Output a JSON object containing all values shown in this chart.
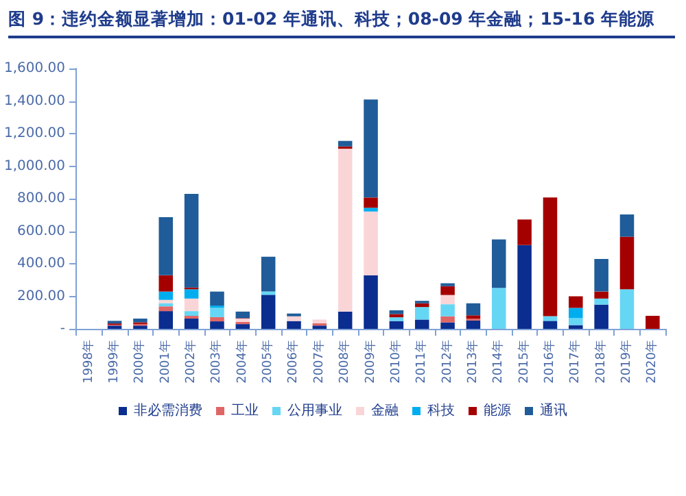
{
  "chart_data": {
    "type": "bar",
    "stacked": true,
    "title": "图 9：违约金额显著增加：01-02 年通讯、科技；08-09 年金融；15-16 年能源",
    "categories": [
      "1998年",
      "1999年",
      "2000年",
      "2001年",
      "2002年",
      "2003年",
      "2004年",
      "2005年",
      "2006年",
      "2007年",
      "2008年",
      "2009年",
      "2010年",
      "2011年",
      "2012年",
      "2013年",
      "2014年",
      "2015年",
      "2016年",
      "2017年",
      "2018年",
      "2019年",
      "2020年"
    ],
    "series": [
      {
        "name": "非必需消费",
        "color": "#0a2d8f",
        "values": [
          null,
          20,
          20,
          109,
          63,
          46,
          29,
          209,
          48,
          20,
          106,
          329,
          48,
          57,
          40,
          51,
          null,
          515,
          49,
          23,
          149,
          null,
          null
        ]
      },
      {
        "name": "工业",
        "color": "#e06666",
        "values": [
          null,
          5,
          10,
          29,
          17,
          26,
          14,
          null,
          null,
          14,
          null,
          null,
          null,
          null,
          37,
          12,
          null,
          null,
          null,
          null,
          null,
          null,
          null
        ]
      },
      {
        "name": "公用事业",
        "color": "#66d6f5",
        "values": [
          null,
          null,
          null,
          20,
          29,
          57,
          null,
          20,
          null,
          null,
          null,
          null,
          23,
          77,
          74,
          null,
          252,
          null,
          29,
          43,
          37,
          243,
          null
        ]
      },
      {
        "name": "金融",
        "color": "#f9d5d8",
        "values": [
          null,
          null,
          null,
          20,
          77,
          null,
          20,
          null,
          29,
          23,
          1001,
          392,
          null,
          null,
          57,
          null,
          null,
          null,
          null,
          null,
          null,
          null,
          null
        ]
      },
      {
        "name": "科技",
        "color": "#00aeef",
        "values": [
          null,
          null,
          null,
          51,
          57,
          14,
          null,
          null,
          null,
          null,
          null,
          23,
          null,
          null,
          null,
          null,
          null,
          null,
          null,
          63,
          null,
          null,
          null
        ]
      },
      {
        "name": "能源",
        "color": "#a50000",
        "values": [
          null,
          8,
          10,
          100,
          11,
          null,
          3,
          null,
          null,
          null,
          14,
          63,
          20,
          23,
          54,
          20,
          null,
          157,
          729,
          71,
          43,
          323,
          80
        ]
      },
      {
        "name": "通讯",
        "color": "#1f5c99",
        "values": [
          null,
          16,
          23,
          357,
          575,
          86,
          40,
          214,
          17,
          null,
          34,
          603,
          23,
          15,
          18,
          74,
          297,
          null,
          null,
          null,
          200,
          137,
          null
        ]
      }
    ],
    "ylim": [
      0,
      1600
    ],
    "yticks": [
      {
        "value": 0,
        "label": "-"
      },
      {
        "value": 200,
        "label": "200.00"
      },
      {
        "value": 400,
        "label": "400.00"
      },
      {
        "value": 600,
        "label": "600.00"
      },
      {
        "value": 800,
        "label": "800.00"
      },
      {
        "value": 1000,
        "label": "1,000.00"
      },
      {
        "value": 1200,
        "label": "1,200.00"
      },
      {
        "value": 1400,
        "label": "1,400.00"
      },
      {
        "value": 1600,
        "label": "1,600.00"
      }
    ],
    "grid": false,
    "legend": "bottom"
  }
}
